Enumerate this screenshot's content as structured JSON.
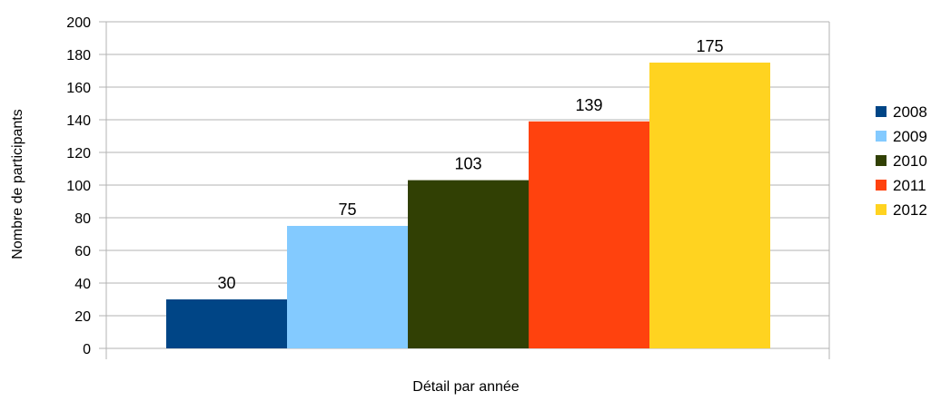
{
  "chart_data": {
    "type": "bar",
    "title": "",
    "xlabel": "Détail par année",
    "ylabel": "Nombre de participants",
    "ylim": [
      0,
      200
    ],
    "yticks": [
      "0",
      "20",
      "40",
      "60",
      "80",
      "100",
      "120",
      "140",
      "160",
      "180",
      "200"
    ],
    "grid": true,
    "legend_position": "right",
    "series": [
      {
        "name": "2008",
        "value": 30,
        "label": "30",
        "color": "#004586"
      },
      {
        "name": "2009",
        "value": 75,
        "label": "75",
        "color": "#83caff"
      },
      {
        "name": "2010",
        "value": 103,
        "label": "103",
        "color": "#314004"
      },
      {
        "name": "2011",
        "value": 139,
        "label": "139",
        "color": "#ff420e"
      },
      {
        "name": "2012",
        "value": 175,
        "label": "175",
        "color": "#ffd320"
      }
    ]
  }
}
